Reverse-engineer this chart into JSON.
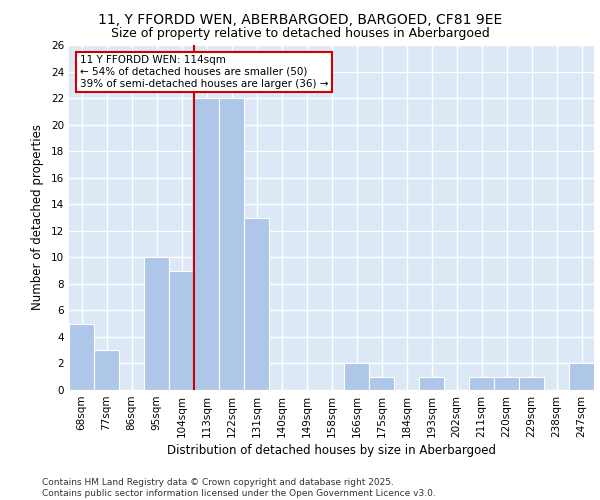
{
  "title1": "11, Y FFORDD WEN, ABERBARGOED, BARGOED, CF81 9EE",
  "title2": "Size of property relative to detached houses in Aberbargoed",
  "xlabel": "Distribution of detached houses by size in Aberbargoed",
  "ylabel": "Number of detached properties",
  "categories": [
    "68sqm",
    "77sqm",
    "86sqm",
    "95sqm",
    "104sqm",
    "113sqm",
    "122sqm",
    "131sqm",
    "140sqm",
    "149sqm",
    "158sqm",
    "166sqm",
    "175sqm",
    "184sqm",
    "193sqm",
    "202sqm",
    "211sqm",
    "220sqm",
    "229sqm",
    "238sqm",
    "247sqm"
  ],
  "values": [
    5,
    3,
    0,
    10,
    9,
    22,
    22,
    13,
    0,
    0,
    0,
    2,
    1,
    0,
    1,
    0,
    1,
    1,
    1,
    0,
    2
  ],
  "bar_color": "#aec6e8",
  "bar_edgecolor": "#aec6e8",
  "vline_color": "#cc0000",
  "vline_index": 5,
  "annotation_text": "11 Y FFORDD WEN: 114sqm\n← 54% of detached houses are smaller (50)\n39% of semi-detached houses are larger (36) →",
  "annotation_box_color": "#ffffff",
  "annotation_box_edgecolor": "#cc0000",
  "ylim": [
    0,
    26
  ],
  "yticks": [
    0,
    2,
    4,
    6,
    8,
    10,
    12,
    14,
    16,
    18,
    20,
    22,
    24,
    26
  ],
  "background_color": "#dce8f5",
  "grid_color": "#ffffff",
  "footer_text": "Contains HM Land Registry data © Crown copyright and database right 2025.\nContains public sector information licensed under the Open Government Licence v3.0.",
  "title1_fontsize": 10,
  "title2_fontsize": 9,
  "xlabel_fontsize": 8.5,
  "ylabel_fontsize": 8.5,
  "tick_fontsize": 7.5,
  "footer_fontsize": 6.5,
  "annot_fontsize": 7.5
}
